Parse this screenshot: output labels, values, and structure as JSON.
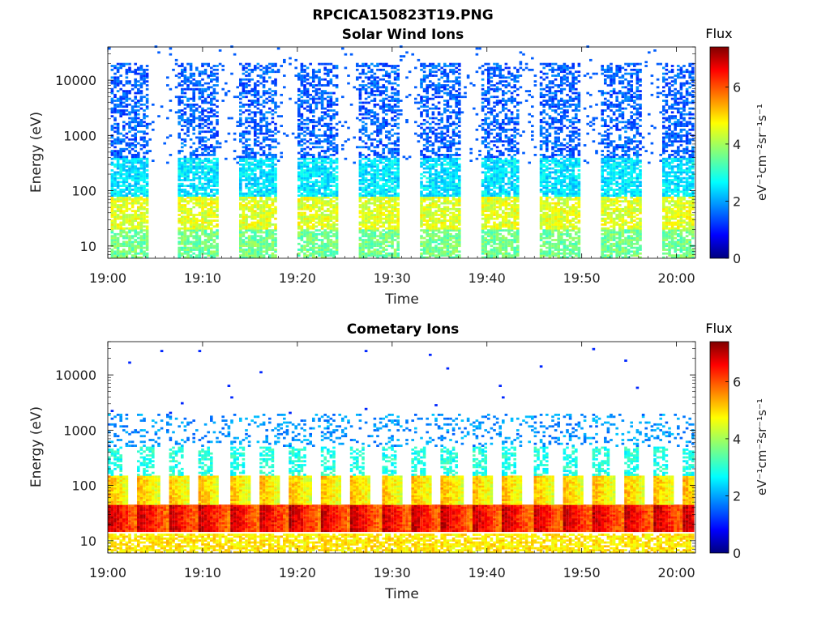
{
  "figure": {
    "title": "RPCICA150823T19.PNG"
  },
  "chart_data": [
    {
      "type": "heatmap",
      "title": "Solar Wind Ions",
      "xlabel": "Time",
      "ylabel": "Energy (eV)",
      "x_ticks": [
        "19:00",
        "19:10",
        "19:20",
        "19:30",
        "19:40",
        "19:50",
        "20:00"
      ],
      "x_range_minutes": [
        0,
        62
      ],
      "y_scale": "log",
      "y_ticks": [
        10,
        100,
        1000,
        10000
      ],
      "y_tick_labels": [
        "10",
        "100",
        "1000",
        "10000"
      ],
      "y_range": [
        6,
        40000
      ],
      "colorbar": {
        "label": "Flux",
        "units": "eV⁻¹cm⁻²sr⁻¹s⁻¹",
        "range": [
          0,
          7.4
        ],
        "ticks": [
          "0",
          "2",
          "4",
          "6"
        ],
        "colormap": "jet"
      },
      "sweep_start_minutes": [
        0.2,
        7.4,
        13.7,
        20.1,
        26.6,
        32.9,
        39.3,
        45.6,
        52.0,
        58.5
      ],
      "sweep_length_minutes": 4.2,
      "bands": [
        {
          "energy_range_eV": [
            6,
            40
          ],
          "flux": 3.6
        },
        {
          "energy_range_eV": [
            20,
            80
          ],
          "flux": 4.4
        },
        {
          "energy_range_eV": [
            80,
            400
          ],
          "flux": 2.6
        },
        {
          "energy_range_eV": [
            400,
            20000
          ],
          "flux": 1.6
        }
      ]
    },
    {
      "type": "heatmap",
      "title": "Cometary Ions",
      "xlabel": "Time",
      "ylabel": "Energy (eV)",
      "x_ticks": [
        "19:00",
        "19:10",
        "19:20",
        "19:30",
        "19:40",
        "19:50",
        "20:00"
      ],
      "x_range_minutes": [
        0,
        62
      ],
      "y_scale": "log",
      "y_ticks": [
        10,
        100,
        1000,
        10000
      ],
      "y_tick_labels": [
        "10",
        "100",
        "1000",
        "10000"
      ],
      "y_range": [
        6,
        40000
      ],
      "colorbar": {
        "label": "Flux",
        "units": "eV⁻¹cm⁻²sr⁻¹s⁻¹",
        "range": [
          0,
          7.4
        ],
        "ticks": [
          "0",
          "2",
          "4",
          "6"
        ],
        "colormap": "jet"
      },
      "sweep_period_minutes": 3.2,
      "bands": [
        {
          "energy_range_eV": [
            6,
            13
          ],
          "flux": 4.8
        },
        {
          "energy_range_eV": [
            15,
            45
          ],
          "flux": 7.0
        },
        {
          "energy_range_eV": [
            45,
            150
          ],
          "flux": 5.2
        },
        {
          "energy_range_eV": [
            150,
            500
          ],
          "flux": 3.0
        },
        {
          "energy_range_eV": [
            500,
            2000
          ],
          "flux": 2.0
        }
      ]
    }
  ]
}
